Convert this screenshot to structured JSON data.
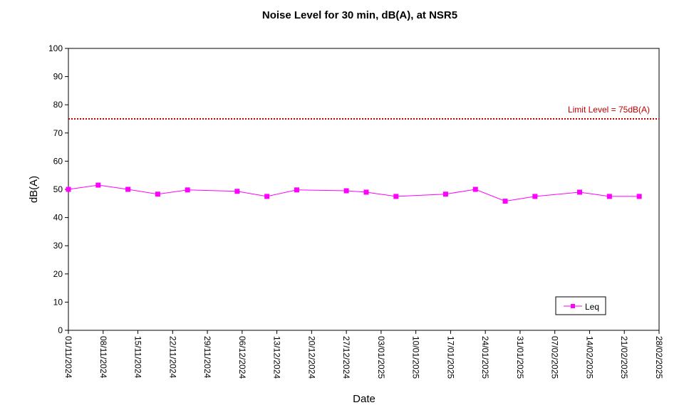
{
  "chart_data": {
    "type": "line",
    "title": "Noise Level for 30 min, dB(A), at NSR5",
    "xlabel": "Date",
    "ylabel": "dB(A)",
    "ylim": [
      0,
      100
    ],
    "yticks": [
      0,
      10,
      20,
      30,
      40,
      50,
      60,
      70,
      80,
      90,
      100
    ],
    "xlim": [
      "01/11/2024",
      "28/02/2025"
    ],
    "xticks": [
      "01/11/2024",
      "08/11/2024",
      "15/11/2024",
      "22/11/2024",
      "29/11/2024",
      "06/12/2024",
      "13/12/2024",
      "20/12/2024",
      "27/12/2024",
      "03/01/2025",
      "10/01/2025",
      "17/01/2025",
      "24/01/2025",
      "31/01/2025",
      "07/02/2025",
      "14/02/2025",
      "21/02/2025",
      "28/02/2025"
    ],
    "grid": false,
    "legend_position": "bottom-right",
    "series": [
      {
        "name": "Leq",
        "color": "#ff00ff",
        "marker": "square",
        "x": [
          "01/11/2024",
          "07/11/2024",
          "13/11/2024",
          "19/11/2024",
          "25/11/2024",
          "05/12/2024",
          "11/12/2024",
          "17/12/2024",
          "27/12/2024",
          "31/12/2024",
          "06/01/2025",
          "16/01/2025",
          "22/01/2025",
          "28/01/2025",
          "03/02/2025",
          "12/02/2025",
          "18/02/2025",
          "24/02/2025"
        ],
        "values": [
          50.0,
          51.5,
          50.0,
          48.3,
          49.8,
          49.3,
          47.5,
          49.8,
          49.5,
          49.0,
          47.5,
          48.3,
          50.0,
          45.8,
          47.5,
          49.0,
          47.5,
          47.5
        ]
      }
    ],
    "reference_line": {
      "value": 75,
      "label": "Limit Level  = 75dB(A)",
      "color": "#c00000",
      "style": "dotted"
    }
  }
}
